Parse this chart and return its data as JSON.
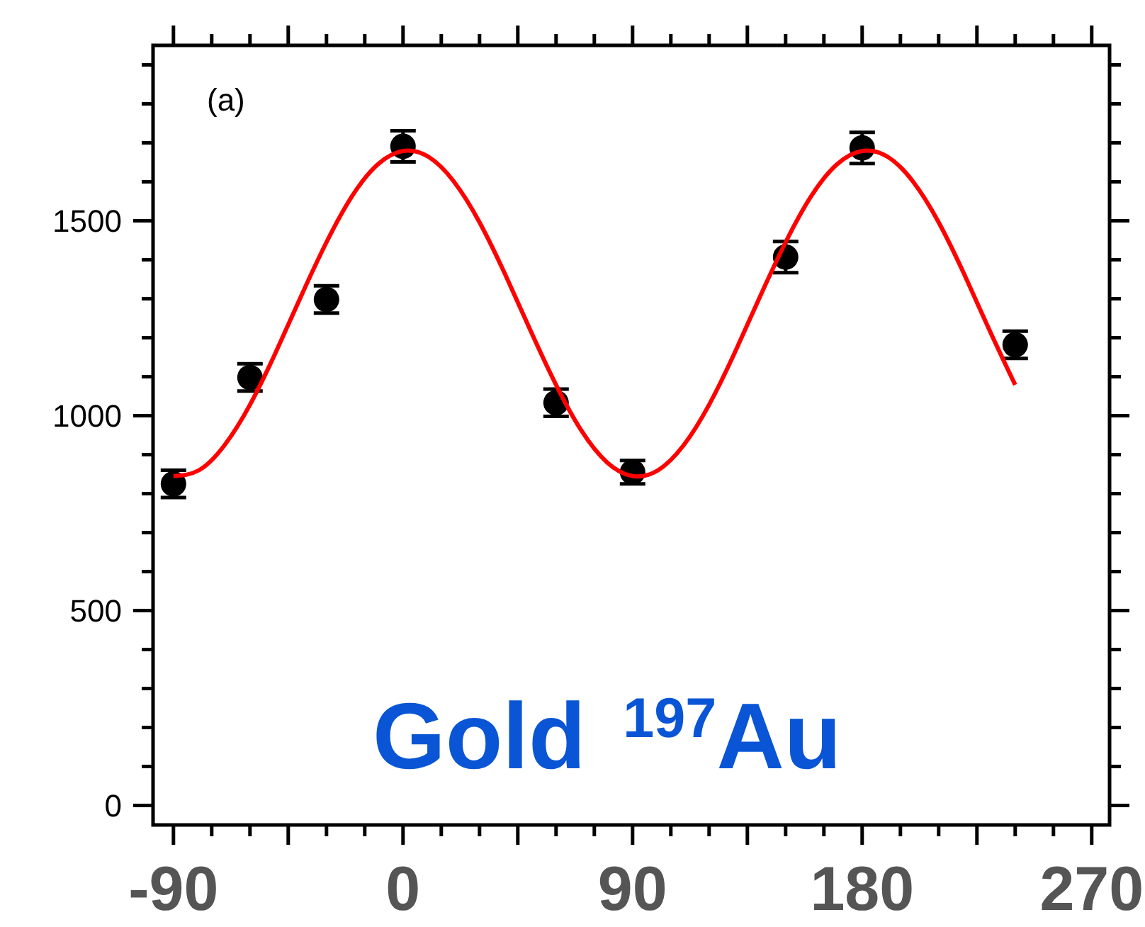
{
  "chart_data": {
    "type": "scatter",
    "xlim": [
      -98,
      277
    ],
    "ylim": [
      -50,
      1950
    ],
    "xticks": [
      -90,
      {
        "value": -75,
        "label": null
      },
      {
        "value": -60,
        "label": null
      },
      {
        "value": -45,
        "label": null
      },
      {
        "value": -30,
        "label": null
      },
      {
        "value": -15,
        "label": null
      },
      0,
      {
        "value": 15,
        "label": null
      },
      {
        "value": 30,
        "label": null
      },
      {
        "value": 45,
        "label": null
      },
      {
        "value": 60,
        "label": null
      },
      {
        "value": 75,
        "label": null
      },
      90,
      {
        "value": 105,
        "label": null
      },
      {
        "value": 120,
        "label": null
      },
      {
        "value": 135,
        "label": null
      },
      {
        "value": 150,
        "label": null
      },
      {
        "value": 165,
        "label": null
      },
      180,
      {
        "value": 195,
        "label": null
      },
      {
        "value": 210,
        "label": null
      },
      {
        "value": 225,
        "label": null
      },
      {
        "value": 240,
        "label": null
      },
      {
        "value": 255,
        "label": null
      },
      270
    ],
    "yticks": [
      0,
      {
        "value": 100,
        "label": null
      },
      {
        "value": 200,
        "label": null
      },
      {
        "value": 300,
        "label": null
      },
      {
        "value": 400,
        "label": null
      },
      500,
      {
        "value": 600,
        "label": null
      },
      {
        "value": 700,
        "label": null
      },
      {
        "value": 800,
        "label": null
      },
      {
        "value": 900,
        "label": null
      },
      1000,
      {
        "value": 1100,
        "label": null
      },
      {
        "value": 1200,
        "label": null
      },
      {
        "value": 1300,
        "label": null
      },
      {
        "value": 1400,
        "label": null
      },
      1500,
      {
        "value": 1600,
        "label": null
      },
      {
        "value": 1700,
        "label": null
      },
      {
        "value": 1800,
        "label": null
      },
      {
        "value": 1900,
        "label": null
      }
    ],
    "grid": false,
    "marker": "circle",
    "annotations": [
      "(a)",
      "Gold $^{197}$Au"
    ],
    "series": [
      {
        "type": "line",
        "color": "#ff0000",
        "marker": "none",
        "line_style": "solid",
        "x": [
          -90,
          -80,
          -70,
          -60,
          -50,
          -40,
          -30,
          -20,
          -10,
          0,
          10,
          20,
          30,
          40,
          50,
          60,
          70,
          80,
          90,
          100,
          110,
          120,
          130,
          140,
          150,
          160,
          170,
          180,
          190,
          200,
          210,
          220,
          230,
          240
        ],
        "values": [
          845,
          860,
          924,
          1028,
          1161,
          1306,
          1445,
          1563,
          1644,
          1679,
          1664,
          1600,
          1496,
          1363,
          1218,
          1079,
          961,
          880,
          845,
          860,
          924,
          1028,
          1161,
          1306,
          1445,
          1563,
          1644,
          1679,
          1664,
          1600,
          1496,
          1363,
          1218,
          1079
        ]
      },
      {
        "type": "scatter",
        "color": "#000000",
        "x": [
          -90,
          -60,
          -30,
          0,
          60,
          90,
          150,
          180,
          240
        ],
        "values": [
          825,
          1098,
          1298,
          1691,
          1033,
          855,
          1407,
          1687,
          1182
        ],
        "errors": [
          35,
          35,
          35,
          40,
          35,
          30,
          40,
          40,
          35
        ]
      }
    ]
  }
}
